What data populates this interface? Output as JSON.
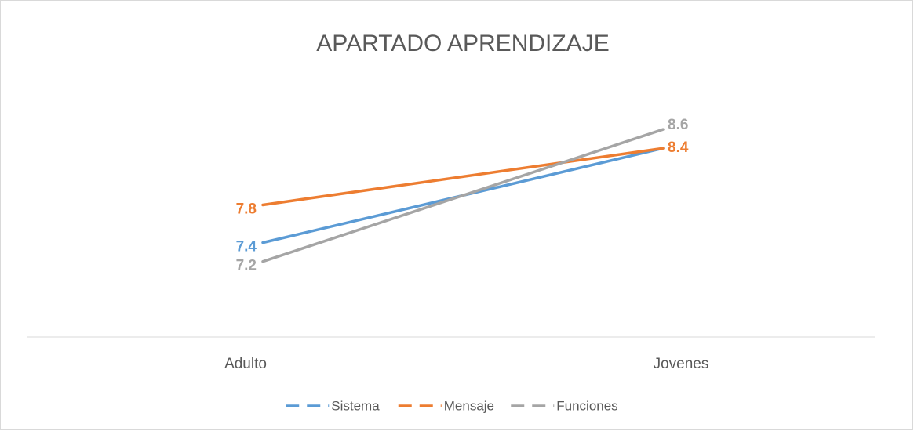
{
  "chart_data": {
    "type": "line",
    "title": "APARTADO APRENDIZAJE",
    "categories": [
      "Adulto",
      "Jovenes"
    ],
    "series": [
      {
        "name": "Sistema",
        "color": "#5b9bd5",
        "values": [
          7.4,
          8.4
        ]
      },
      {
        "name": "Mensaje",
        "color": "#ed7d31",
        "values": [
          7.8,
          8.4
        ]
      },
      {
        "name": "Funciones",
        "color": "#a5a5a5",
        "values": [
          7.2,
          8.6
        ]
      }
    ],
    "ylim": [
      6.4,
      9.0
    ],
    "legend": "bottom"
  }
}
